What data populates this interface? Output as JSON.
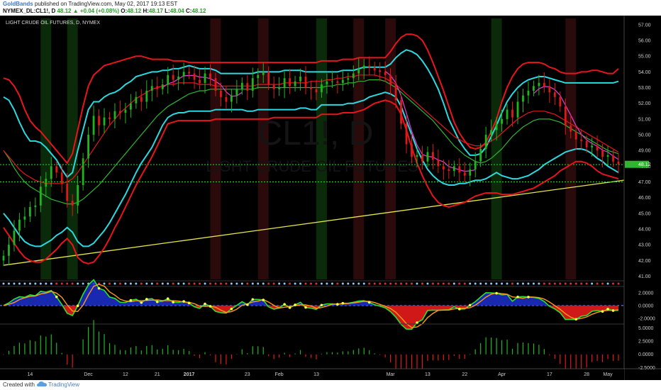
{
  "header": {
    "brand": "GoldBands",
    "published": " published on TradingView.com, May 02, 2017 19:13 EST",
    "symbol": "NYMEX_DL:CL1!, D",
    "price": "48.12",
    "arrow": "▲",
    "change": "+0.04 (+0.08%)",
    "o_label": "O:",
    "o_value": "48.12",
    "h_label": "H:",
    "h_value": "48.17",
    "l_label": "L:",
    "l_value": "48.04",
    "c_label": "C:",
    "c_value": "48.12"
  },
  "footer": {
    "created": "Created with",
    "brand": "TradingView"
  },
  "chart_data": {
    "type": "candlestick",
    "title": "LIGHT CRUDE OIL FUTURES, D, NYMEX",
    "watermark_symbol": "CL1!, D",
    "watermark_name": "LIGHT CRUDE OIL FUTURES",
    "price_axis": {
      "range": [
        40.8,
        57.4
      ],
      "ticks": [
        "57.00",
        "56.00",
        "55.00",
        "54.00",
        "53.00",
        "52.00",
        "51.00",
        "50.00",
        "49.00",
        "48.00",
        "47.00",
        "46.00",
        "45.00",
        "44.00",
        "43.00",
        "42.00",
        "41.00"
      ],
      "last_price_label": "48.12",
      "last_price": 48.12
    },
    "x_axis": {
      "ticks": [
        {
          "i": 5,
          "label": "14"
        },
        {
          "i": 16,
          "label": "Dec"
        },
        {
          "i": 23,
          "label": "12"
        },
        {
          "i": 29,
          "label": "21"
        },
        {
          "i": 35,
          "label": "2017"
        },
        {
          "i": 46,
          "label": "23"
        },
        {
          "i": 52,
          "label": "Feb"
        },
        {
          "i": 59,
          "label": "13"
        },
        {
          "i": 73,
          "label": "Mar"
        },
        {
          "i": 80,
          "label": "13"
        },
        {
          "i": 87,
          "label": "22"
        },
        {
          "i": 94,
          "label": "Apr"
        },
        {
          "i": 103,
          "label": "17"
        },
        {
          "i": 110,
          "label": "28"
        },
        {
          "i": 114,
          "label": "May"
        }
      ]
    },
    "support_line_level": 47.0,
    "resistance_line_level": 48.1,
    "trendline": {
      "start": [
        0,
        41.7
      ],
      "end": [
        119,
        47.2
      ]
    },
    "close": [
      42.3,
      43.0,
      43.9,
      44.6,
      44.8,
      45.4,
      45.5,
      46.7,
      47.2,
      48.0,
      47.6,
      46.9,
      45.8,
      45.5,
      46.8,
      48.5,
      50.0,
      51.2,
      50.6,
      51.1,
      51.0,
      51.5,
      51.4,
      51.6,
      52.0,
      52.4,
      52.1,
      52.8,
      53.1,
      52.9,
      53.2,
      53.8,
      53.5,
      53.7,
      54.0,
      53.9,
      53.5,
      53.3,
      53.9,
      53.6,
      52.8,
      52.4,
      52.1,
      52.5,
      52.9,
      53.3,
      52.8,
      53.6,
      53.8,
      54.0,
      53.2,
      52.9,
      53.0,
      53.6,
      53.1,
      53.4,
      53.7,
      53.0,
      52.9,
      52.7,
      53.2,
      53.4,
      53.4,
      53.3,
      53.5,
      53.6,
      53.9,
      54.2,
      54.4,
      54.3,
      54.1,
      54.0,
      53.8,
      53.2,
      52.2,
      50.7,
      49.4,
      48.6,
      48.7,
      48.3,
      48.9,
      48.4,
      48.0,
      47.8,
      47.7,
      48.0,
      47.6,
      47.4,
      47.8,
      48.3,
      49.1,
      50.0,
      50.3,
      50.7,
      51.0,
      51.6,
      51.1,
      52.1,
      52.5,
      52.8,
      53.1,
      53.3,
      53.1,
      52.7,
      52.4,
      51.8,
      50.6,
      50.2,
      49.7,
      49.6,
      49.2,
      49.3,
      49.0,
      48.6,
      48.7,
      48.3,
      48.12
    ],
    "series": [
      {
        "name": "",
        "color": "#2bd9e0",
        "values": [
          52.4,
          52.2,
          51.6,
          50.8,
          50.1,
          49.6,
          49.6,
          49.5,
          49.2,
          48.8,
          48.4,
          47.8,
          47.3,
          47.6,
          49.0,
          50.3,
          51.6,
          52.1,
          52.1,
          52.4,
          52.6,
          52.7,
          52.9,
          53.2,
          53.4,
          53.7,
          53.8,
          53.9,
          54.0,
          54.0,
          54.1,
          54.1,
          54.2,
          54.2,
          54.3,
          54.4,
          54.3,
          54.2,
          54.2,
          54.2,
          54.1,
          53.9,
          53.9,
          53.9,
          53.9,
          53.9,
          53.9,
          53.9,
          54.0,
          54.0,
          54.0,
          54.0,
          54.0,
          54.1,
          54.1,
          54.1,
          54.1,
          54.0,
          54.0,
          54.0,
          54.0,
          54.0,
          54.0,
          54.0,
          54.1,
          54.1,
          54.1,
          54.2,
          54.3,
          54.3,
          54.3,
          54.3,
          54.3,
          54.5,
          54.9,
          55.2,
          55.4,
          55.3,
          55.1,
          54.7,
          54.2,
          53.6,
          52.9,
          52.0,
          51.0,
          50.3,
          49.6,
          49.1,
          48.7,
          48.7,
          48.8,
          49.2,
          49.9,
          50.6,
          51.4,
          52.1,
          52.6,
          53.0,
          53.3,
          53.5,
          53.6,
          53.7,
          53.7,
          53.6,
          53.5,
          53.4,
          53.3,
          53.3,
          53.3,
          53.3,
          53.3,
          53.3,
          53.3,
          53.3,
          53.3,
          53.3,
          53.4
        ]
      },
      {
        "name": "",
        "color": "#2bd9e0",
        "values": [
          45.0,
          44.6,
          44.1,
          43.6,
          43.2,
          43.0,
          42.9,
          42.9,
          43.1,
          43.3,
          43.6,
          43.8,
          44.1,
          43.8,
          43.2,
          42.9,
          42.9,
          43.1,
          43.5,
          43.9,
          44.4,
          45.0,
          45.6,
          46.2,
          46.9,
          47.6,
          48.2,
          48.7,
          49.2,
          49.9,
          50.6,
          51.1,
          51.3,
          51.4,
          51.4,
          51.5,
          51.5,
          51.5,
          51.5,
          51.5,
          51.6,
          51.6,
          51.6,
          51.6,
          51.6,
          51.6,
          51.5,
          51.5,
          51.6,
          51.6,
          51.6,
          51.6,
          51.6,
          51.6,
          51.6,
          51.6,
          51.7,
          51.7,
          51.6,
          51.6,
          51.9,
          51.9,
          51.9,
          51.9,
          51.9,
          52.0,
          52.0,
          52.1,
          52.2,
          52.4,
          52.5,
          52.6,
          52.7,
          52.6,
          52.4,
          51.8,
          50.9,
          50.0,
          49.1,
          48.4,
          47.8,
          47.4,
          47.1,
          46.9,
          46.8,
          46.8,
          46.9,
          46.9,
          47.0,
          47.1,
          47.1,
          47.2,
          47.4,
          47.6,
          47.4,
          47.3,
          47.2,
          47.2,
          47.3,
          47.4,
          47.6,
          47.8,
          48.1,
          48.3,
          48.5,
          48.7,
          48.9,
          49.0,
          49.1,
          49.1,
          49.0,
          48.8,
          48.5,
          48.3,
          48.0,
          47.8,
          47.6
        ]
      },
      {
        "name": "",
        "color": "#e8151c",
        "values": [
          53.6,
          53.5,
          53.1,
          52.5,
          51.6,
          50.9,
          50.5,
          50.2,
          49.8,
          49.4,
          49.0,
          48.6,
          48.2,
          48.8,
          50.3,
          51.8,
          53.1,
          53.8,
          54.1,
          54.4,
          54.5,
          54.6,
          54.7,
          54.8,
          54.9,
          55.0,
          55.0,
          54.9,
          54.8,
          54.8,
          54.8,
          54.8,
          54.7,
          54.7,
          54.7,
          54.6,
          54.6,
          54.6,
          54.6,
          54.6,
          54.6,
          54.6,
          54.6,
          54.6,
          54.6,
          54.6,
          54.6,
          54.6,
          54.6,
          54.6,
          54.6,
          54.6,
          54.6,
          54.6,
          54.6,
          54.6,
          54.6,
          54.6,
          54.6,
          54.6,
          54.7,
          54.7,
          54.7,
          54.7,
          54.8,
          54.8,
          54.8,
          54.9,
          54.9,
          54.9,
          54.9,
          54.9,
          54.9,
          55.3,
          55.8,
          56.2,
          56.4,
          56.4,
          56.3,
          56.0,
          55.4,
          54.6,
          53.7,
          52.8,
          51.8,
          50.8,
          50.1,
          49.6,
          49.2,
          49.1,
          49.2,
          49.5,
          50.2,
          51.0,
          52.1,
          53.0,
          53.7,
          54.2,
          54.5,
          54.6,
          54.6,
          54.6,
          54.5,
          54.3,
          54.2,
          54.0,
          53.9,
          53.9,
          53.9,
          54.0,
          54.0,
          54.1,
          54.1,
          54.0,
          53.9,
          53.9,
          54.2
        ]
      },
      {
        "name": "",
        "color": "#e8151c",
        "values": [
          44.1,
          43.6,
          43.1,
          42.6,
          42.2,
          42.0,
          41.9,
          41.9,
          42.1,
          42.4,
          42.7,
          43.1,
          43.4,
          43.0,
          42.2,
          41.9,
          41.8,
          41.9,
          42.3,
          42.8,
          43.4,
          44.1,
          44.7,
          45.4,
          46.1,
          46.8,
          47.4,
          48.0,
          48.6,
          49.3,
          50.0,
          50.7,
          50.8,
          50.9,
          50.9,
          50.9,
          50.9,
          50.9,
          50.9,
          50.9,
          51.0,
          51.0,
          51.0,
          51.0,
          51.0,
          51.0,
          51.0,
          51.0,
          51.0,
          51.0,
          51.0,
          51.1,
          51.1,
          51.1,
          51.1,
          51.1,
          51.1,
          51.1,
          51.1,
          51.1,
          51.3,
          51.3,
          51.3,
          51.3,
          51.4,
          51.4,
          51.4,
          51.5,
          51.6,
          51.8,
          52.0,
          52.1,
          52.2,
          52.1,
          51.9,
          51.3,
          50.3,
          49.2,
          48.2,
          47.4,
          46.7,
          46.1,
          45.7,
          45.5,
          45.4,
          45.5,
          45.6,
          45.7,
          45.9,
          46.1,
          46.2,
          46.3,
          46.3,
          46.3,
          46.2,
          46.2,
          46.2,
          46.3,
          46.4,
          46.5,
          46.6,
          46.8,
          47.0,
          47.2,
          47.4,
          47.7,
          47.9,
          48.1,
          48.3,
          48.3,
          48.2,
          48.0,
          47.7,
          47.5,
          47.4,
          47.3,
          47.2
        ]
      },
      {
        "name": "",
        "color": "#2fb52f",
        "values": [
          49.0,
          48.5,
          47.9,
          47.4,
          47.0,
          46.7,
          46.5,
          46.3,
          46.1,
          45.9,
          45.8,
          45.7,
          45.6,
          45.6,
          45.7,
          45.9,
          46.2,
          46.5,
          46.8,
          47.2,
          47.6,
          48.0,
          48.4,
          48.8,
          49.2,
          49.6,
          50.0,
          50.4,
          50.8,
          51.2,
          51.5,
          51.8,
          52.0,
          52.2,
          52.4,
          52.6,
          52.7,
          52.8,
          52.8,
          52.9,
          52.9,
          52.9,
          52.9,
          52.9,
          52.9,
          52.9,
          52.9,
          52.9,
          53.0,
          53.0,
          53.0,
          53.0,
          53.0,
          53.0,
          53.0,
          53.0,
          53.0,
          53.0,
          53.0,
          53.0,
          53.0,
          53.1,
          53.1,
          53.2,
          53.2,
          53.3,
          53.3,
          53.4,
          53.4,
          53.5,
          53.5,
          53.5,
          53.4,
          53.2,
          53.0,
          52.7,
          52.4,
          52.1,
          51.8,
          51.5,
          51.2,
          50.9,
          50.5,
          50.1,
          49.7,
          49.3,
          49.0,
          48.7,
          48.5,
          48.3,
          48.2,
          48.3,
          48.5,
          48.8,
          49.1,
          49.5,
          49.9,
          50.2,
          50.5,
          50.7,
          50.9,
          51.0,
          51.0,
          51.0,
          50.9,
          50.8,
          50.6,
          50.4,
          50.2,
          50.0,
          49.8,
          49.6,
          49.4,
          49.2,
          49.0,
          48.9,
          48.8
        ]
      },
      {
        "name": "",
        "color": "#e8151c",
        "values": [
          49.0,
          48.6,
          48.2,
          47.8,
          47.5,
          47.3,
          47.1,
          47.0,
          46.9,
          46.9,
          46.9,
          46.9,
          47.0,
          47.2,
          47.6,
          48.1,
          48.6,
          49.1,
          49.6,
          50.1,
          50.6,
          51.0,
          51.4,
          51.7,
          52.0,
          52.3,
          52.5,
          52.7,
          52.9,
          53.0,
          53.1,
          53.2,
          53.2,
          53.3,
          53.3,
          53.3,
          53.3,
          53.2,
          53.2,
          53.2,
          53.1,
          53.1,
          53.1,
          53.1,
          53.1,
          53.1,
          53.1,
          53.1,
          53.2,
          53.2,
          53.2,
          53.2,
          53.2,
          53.3,
          53.3,
          53.3,
          53.3,
          53.3,
          53.4,
          53.4,
          53.4,
          53.5,
          53.5,
          53.6,
          53.6,
          53.7,
          53.7,
          53.8,
          53.8,
          53.8,
          53.8,
          53.7,
          53.6,
          53.4,
          53.2,
          52.9,
          52.6,
          52.3,
          52.0,
          51.7,
          51.4,
          51.1,
          50.8,
          50.5,
          50.2,
          49.9,
          49.7,
          49.5,
          49.4,
          49.3,
          49.3,
          49.4,
          49.6,
          49.8,
          50.1,
          50.4,
          50.7,
          51.0,
          51.2,
          51.4,
          51.5,
          51.5,
          51.5,
          51.4,
          51.3,
          51.1,
          50.9,
          50.7,
          50.5,
          50.3,
          50.1,
          49.9,
          49.7,
          49.5,
          49.3,
          49.1,
          48.9
        ]
      }
    ],
    "panel2": {
      "ticks": [
        "2.0000",
        "0.0000",
        "-2.0000"
      ],
      "range": [
        -2.8,
        3.0
      ]
    },
    "panel3": {
      "ticks": [
        "5.0000",
        "2.5000",
        "0.0000",
        "-2.5000"
      ],
      "range": [
        -4.6,
        5.6
      ]
    }
  }
}
